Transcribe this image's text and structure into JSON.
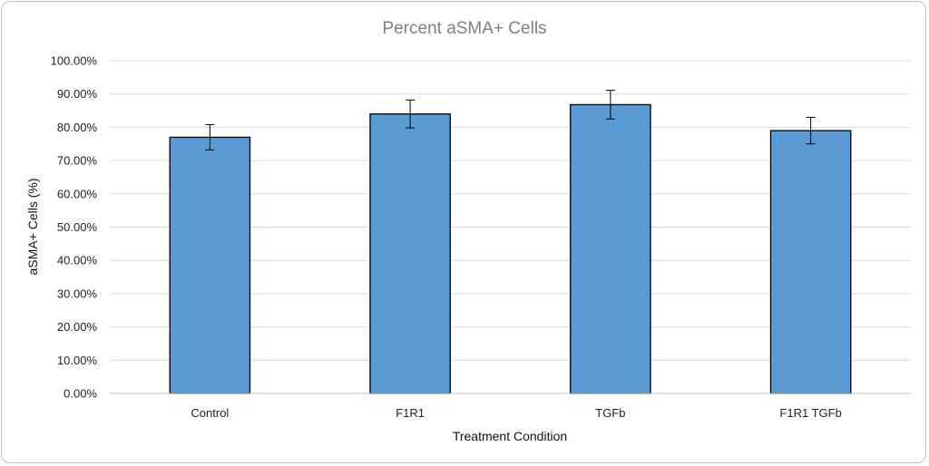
{
  "chart_data": {
    "type": "bar",
    "title": "Percent aSMA+ Cells",
    "xlabel": "Treatment Condition",
    "ylabel": "aSMA+ Cells (%)",
    "categories": [
      "Control",
      "F1R1",
      "TGFb",
      "F1R1 TGFb"
    ],
    "values": [
      77.0,
      84.0,
      86.8,
      79.0
    ],
    "error": [
      3.8,
      4.2,
      4.3,
      4.0
    ],
    "ylim": [
      0,
      100
    ],
    "ytick_step": 10,
    "yticks": [
      "0.00%",
      "10.00%",
      "20.00%",
      "30.00%",
      "40.00%",
      "50.00%",
      "60.00%",
      "70.00%",
      "80.00%",
      "90.00%",
      "100.00%"
    ],
    "grid": true,
    "legend": "none",
    "bar_color": "#5b9bd5",
    "bar_edge_color": "#000000"
  }
}
